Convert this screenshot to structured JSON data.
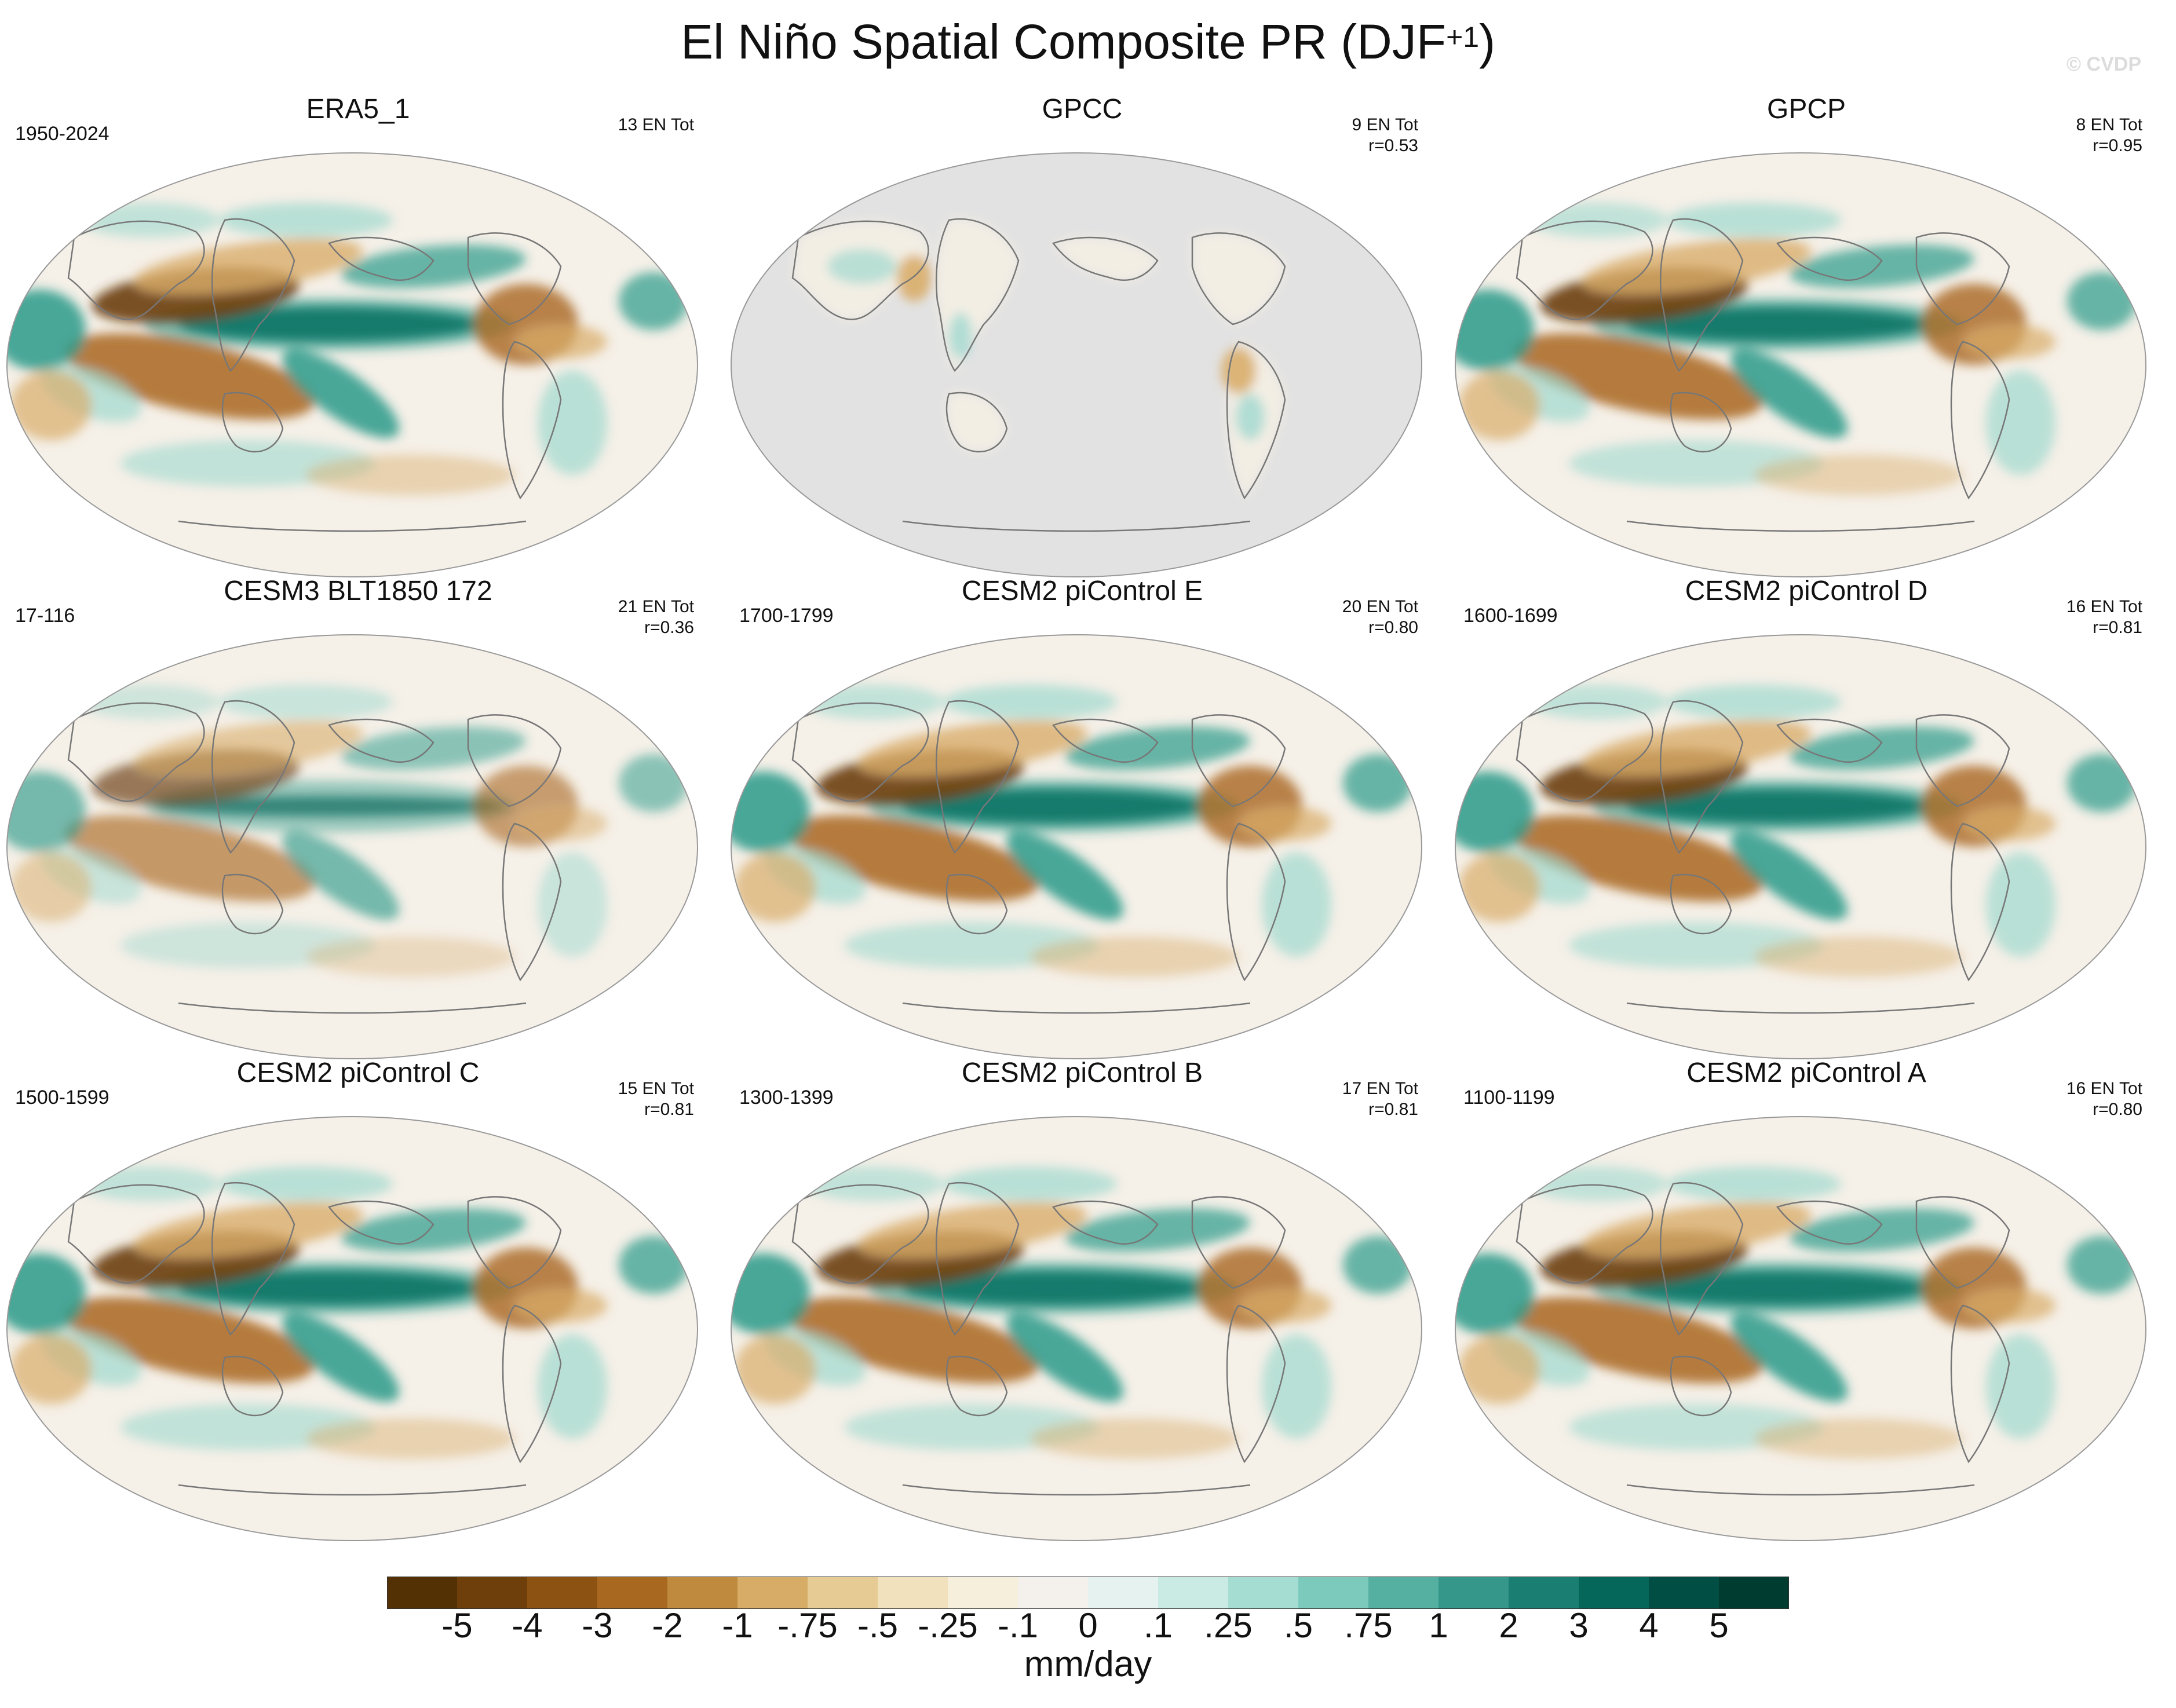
{
  "title": {
    "main": "El Niño Spatial Composite PR (DJF",
    "sup": "+1",
    "close": ")"
  },
  "credit": "© CVDP",
  "colors": {
    "ocean_gray": "#e2e2e2",
    "neutral": "#f5f0e8",
    "coast": "#777777",
    "brown_dark": "#6b3d0a",
    "brown": "#a9661f",
    "brown_light": "#d9ad6a",
    "teal_light": "#9fd8cf",
    "teal": "#2a9a89",
    "teal_dark": "#014d43"
  },
  "panels": [
    {
      "title": "ERA5_1",
      "period": "1950-2024",
      "count": "13 EN Tot",
      "corr": "",
      "style": "obs"
    },
    {
      "title": "GPCC",
      "period": "",
      "count": "9 EN Tot",
      "corr": "r=0.53",
      "style": "land"
    },
    {
      "title": "GPCP",
      "period": "",
      "count": "8 EN Tot",
      "corr": "r=0.95",
      "style": "obs"
    },
    {
      "title": "CESM3 BLT1850 172",
      "period": "17-116",
      "count": "21 EN Tot",
      "corr": "r=0.36",
      "style": "weak"
    },
    {
      "title": "CESM2 piControl E",
      "period": "1700-1799",
      "count": "20 EN Tot",
      "corr": "r=0.80",
      "style": "model"
    },
    {
      "title": "CESM2 piControl D",
      "period": "1600-1699",
      "count": "16 EN Tot",
      "corr": "r=0.81",
      "style": "model"
    },
    {
      "title": "CESM2 piControl C",
      "period": "1500-1599",
      "count": "15 EN Tot",
      "corr": "r=0.81",
      "style": "model"
    },
    {
      "title": "CESM2 piControl B",
      "period": "1300-1399",
      "count": "17 EN Tot",
      "corr": "r=0.81",
      "style": "model"
    },
    {
      "title": "CESM2 piControl A",
      "period": "1100-1199",
      "count": "16 EN Tot",
      "corr": "r=0.80",
      "style": "model"
    }
  ],
  "colorbar": {
    "units": "mm/day",
    "labels": [
      "-5",
      "-4",
      "-3",
      "-2",
      "-1",
      "-.75",
      "-.5",
      "-.25",
      "-.1",
      "0",
      ".1",
      ".25",
      ".5",
      ".75",
      "1",
      "2",
      "3",
      "4",
      "5"
    ],
    "colors": [
      "#543005",
      "#6f3f0b",
      "#8c5212",
      "#a8681f",
      "#c08a3e",
      "#d6ac66",
      "#e6cc94",
      "#f1e2bd",
      "#f6efdc",
      "#f4f1ec",
      "#e6f2ef",
      "#c9ebe3",
      "#a5ddd2",
      "#7ccabb",
      "#55b0a1",
      "#35978a",
      "#1a7f72",
      "#05675a",
      "#014f44",
      "#003c30"
    ]
  }
}
